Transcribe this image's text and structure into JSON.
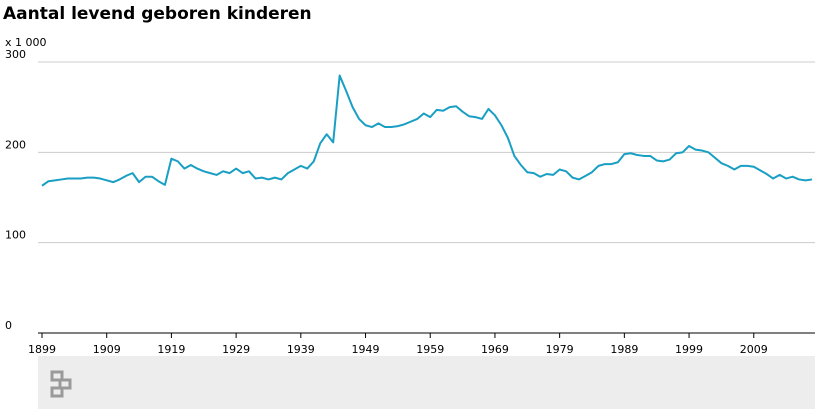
{
  "chart_data": {
    "type": "line",
    "title": "Aantal levend geboren kinderen",
    "y_unit_label": "x 1 000",
    "x": [
      1899,
      1900,
      1901,
      1902,
      1903,
      1904,
      1905,
      1906,
      1907,
      1908,
      1909,
      1910,
      1911,
      1912,
      1913,
      1914,
      1915,
      1916,
      1917,
      1918,
      1919,
      1920,
      1921,
      1922,
      1923,
      1924,
      1925,
      1926,
      1927,
      1928,
      1929,
      1930,
      1931,
      1932,
      1933,
      1934,
      1935,
      1936,
      1937,
      1938,
      1939,
      1940,
      1941,
      1942,
      1943,
      1944,
      1945,
      1946,
      1947,
      1948,
      1949,
      1950,
      1951,
      1952,
      1953,
      1954,
      1955,
      1956,
      1957,
      1958,
      1959,
      1960,
      1961,
      1962,
      1963,
      1964,
      1965,
      1966,
      1967,
      1968,
      1969,
      1970,
      1971,
      1972,
      1973,
      1974,
      1975,
      1976,
      1977,
      1978,
      1979,
      1980,
      1981,
      1982,
      1983,
      1984,
      1985,
      1986,
      1987,
      1988,
      1989,
      1990,
      1991,
      1992,
      1993,
      1994,
      1995,
      1996,
      1997,
      1998,
      1999,
      2000,
      2001,
      2002,
      2003,
      2004,
      2005,
      2006,
      2007,
      2008,
      2009,
      2010,
      2011,
      2012,
      2013,
      2014,
      2015,
      2016,
      2017,
      2018
    ],
    "series": [
      {
        "name": "Levend geboren kinderen",
        "color": "#1a9fc4",
        "values": [
          163,
          168,
          169,
          170,
          171,
          171,
          171,
          172,
          172,
          171,
          169,
          167,
          170,
          174,
          177,
          167,
          173,
          173,
          168,
          164,
          193,
          190,
          182,
          186,
          182,
          179,
          177,
          175,
          179,
          177,
          182,
          177,
          179,
          171,
          172,
          170,
          172,
          170,
          177,
          181,
          185,
          182,
          190,
          210,
          220,
          211,
          285,
          268,
          250,
          237,
          230,
          228,
          232,
          228,
          228,
          229,
          231,
          234,
          237,
          243,
          239,
          247,
          246,
          250,
          251,
          245,
          240,
          239,
          237,
          248,
          241,
          230,
          216,
          196,
          186,
          178,
          177,
          173,
          176,
          175,
          181,
          179,
          172,
          170,
          174,
          178,
          185,
          187,
          187,
          189,
          198,
          199,
          197,
          196,
          196,
          191,
          190,
          192,
          199,
          200,
          207,
          203,
          202,
          200,
          194,
          188,
          185,
          181,
          185,
          185,
          184,
          180,
          176,
          171,
          175,
          171,
          173,
          170,
          169,
          170
        ]
      }
    ],
    "xlim": [
      1899,
      2018
    ],
    "xticks": [
      1899,
      1909,
      1919,
      1929,
      1939,
      1949,
      1959,
      1969,
      1979,
      1989,
      1999,
      2009
    ],
    "ylim": [
      0,
      300
    ],
    "yticks": [
      0,
      100,
      200,
      300
    ],
    "grid": true
  }
}
